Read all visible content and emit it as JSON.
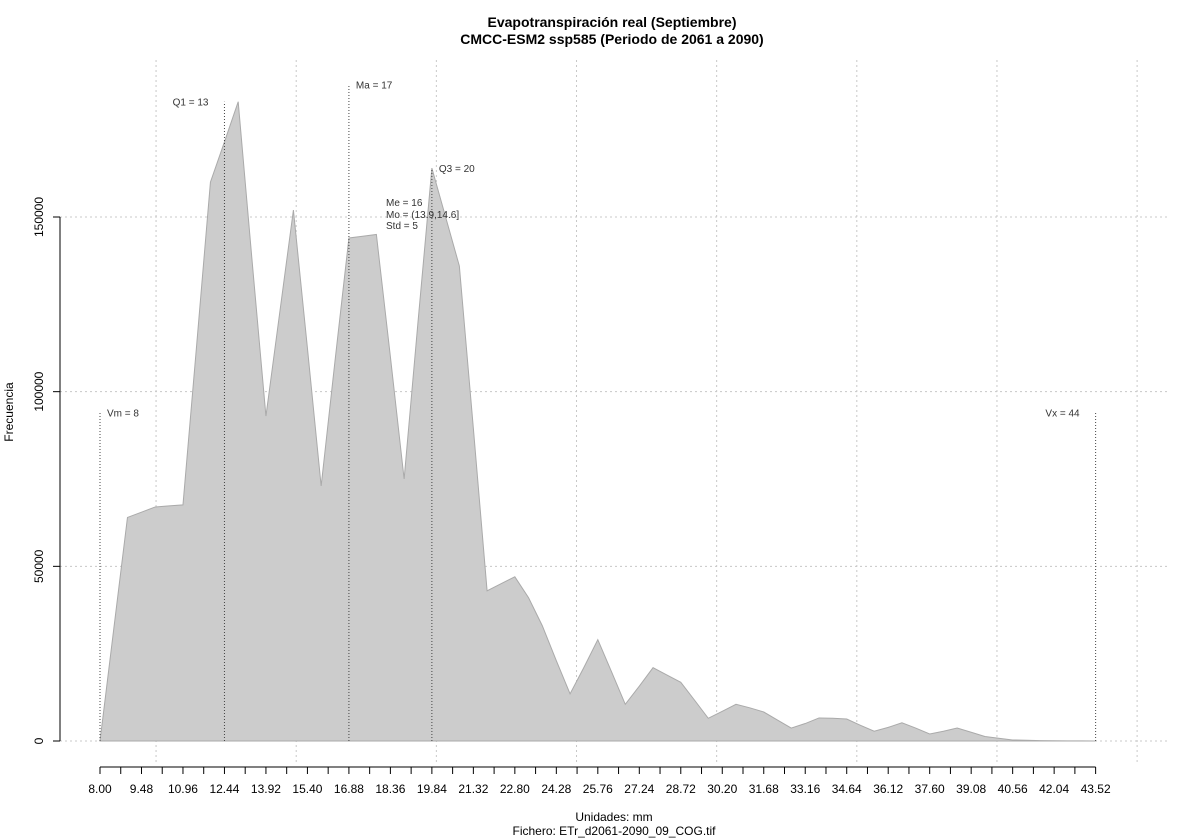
{
  "chart_data": {
    "type": "area",
    "title": "Evapotranspiración real (Septiembre)",
    "subtitle": "CMCC-ESM2 ssp585 (Periodo de 2061 a 2090)",
    "xlabel": "Unidades: mm",
    "file_label": "Fichero: ETr_d2061-2090_09_COG.tif",
    "ylabel": "Frecuencia",
    "x_tick_labels": [
      "8.00",
      "9.48",
      "10.96",
      "12.44",
      "13.92",
      "15.40",
      "16.88",
      "18.36",
      "19.84",
      "21.32",
      "22.80",
      "24.28",
      "25.76",
      "27.24",
      "28.72",
      "30.20",
      "31.68",
      "33.16",
      "34.64",
      "36.12",
      "37.60",
      "39.08",
      "40.56",
      "42.04",
      "43.52"
    ],
    "y_ticks": [
      0,
      50000,
      100000,
      150000
    ],
    "ylim": [
      0,
      190000
    ],
    "xlim": [
      8.0,
      45.0
    ],
    "grid": true,
    "fill_color": "#cccccc",
    "line_color": "#aaaaaa",
    "x": [
      8.0,
      8.49,
      8.98,
      9.48,
      9.97,
      10.46,
      10.96,
      11.45,
      11.94,
      12.44,
      12.93,
      13.42,
      13.92,
      14.41,
      14.9,
      15.4,
      15.89,
      16.38,
      16.88,
      17.37,
      17.86,
      18.36,
      18.85,
      19.34,
      19.84,
      20.33,
      20.82,
      21.32,
      21.81,
      22.3,
      22.8,
      23.29,
      23.78,
      24.28,
      24.77,
      25.26,
      25.76,
      26.25,
      26.74,
      27.24,
      27.73,
      28.22,
      28.72,
      29.21,
      29.7,
      30.2,
      30.69,
      31.18,
      31.68,
      32.17,
      32.66,
      33.16,
      33.65,
      34.14,
      34.64,
      35.13,
      35.62,
      36.12,
      36.61,
      37.1,
      37.6,
      38.09,
      38.58,
      39.08,
      39.57,
      40.06,
      40.56,
      41.05,
      41.54,
      42.04,
      42.53,
      43.02,
      43.52
    ],
    "values": [
      0,
      32000,
      64000,
      65500,
      67000,
      67300,
      67600,
      113500,
      160000,
      171500,
      183000,
      138000,
      93000,
      122500,
      152000,
      112500,
      73000,
      108500,
      144000,
      144500,
      145000,
      110000,
      75000,
      119500,
      164000,
      150000,
      136000,
      89500,
      43000,
      45000,
      47000,
      41000,
      33000,
      23000,
      13500,
      21000,
      29000,
      19800,
      10500,
      15700,
      21000,
      18900,
      16800,
      11700,
      6500,
      8500,
      10500,
      9500,
      8300,
      6000,
      3700,
      5000,
      6600,
      6500,
      6300,
      4500,
      2800,
      3900,
      5200,
      3700,
      2000,
      2800,
      3700,
      2500,
      1300,
      800,
      300,
      200,
      100,
      60,
      40,
      20,
      0
    ],
    "markers": [
      {
        "label": "Vm = 8",
        "x": 8.0,
        "y": 94000
      },
      {
        "label": "Q1 = 13",
        "x": 12.44,
        "y": 183000
      },
      {
        "label": "Ma = 17",
        "x": 16.88,
        "y": 188000
      },
      {
        "label": "Q3 = 20",
        "x": 19.84,
        "y": 164000
      },
      {
        "label": "Vx = 44",
        "x": 43.52,
        "y": 94000
      }
    ],
    "stats_labels": [
      "Me = 16",
      "Mo = (13.9,14.6]",
      "Std = 5"
    ]
  }
}
